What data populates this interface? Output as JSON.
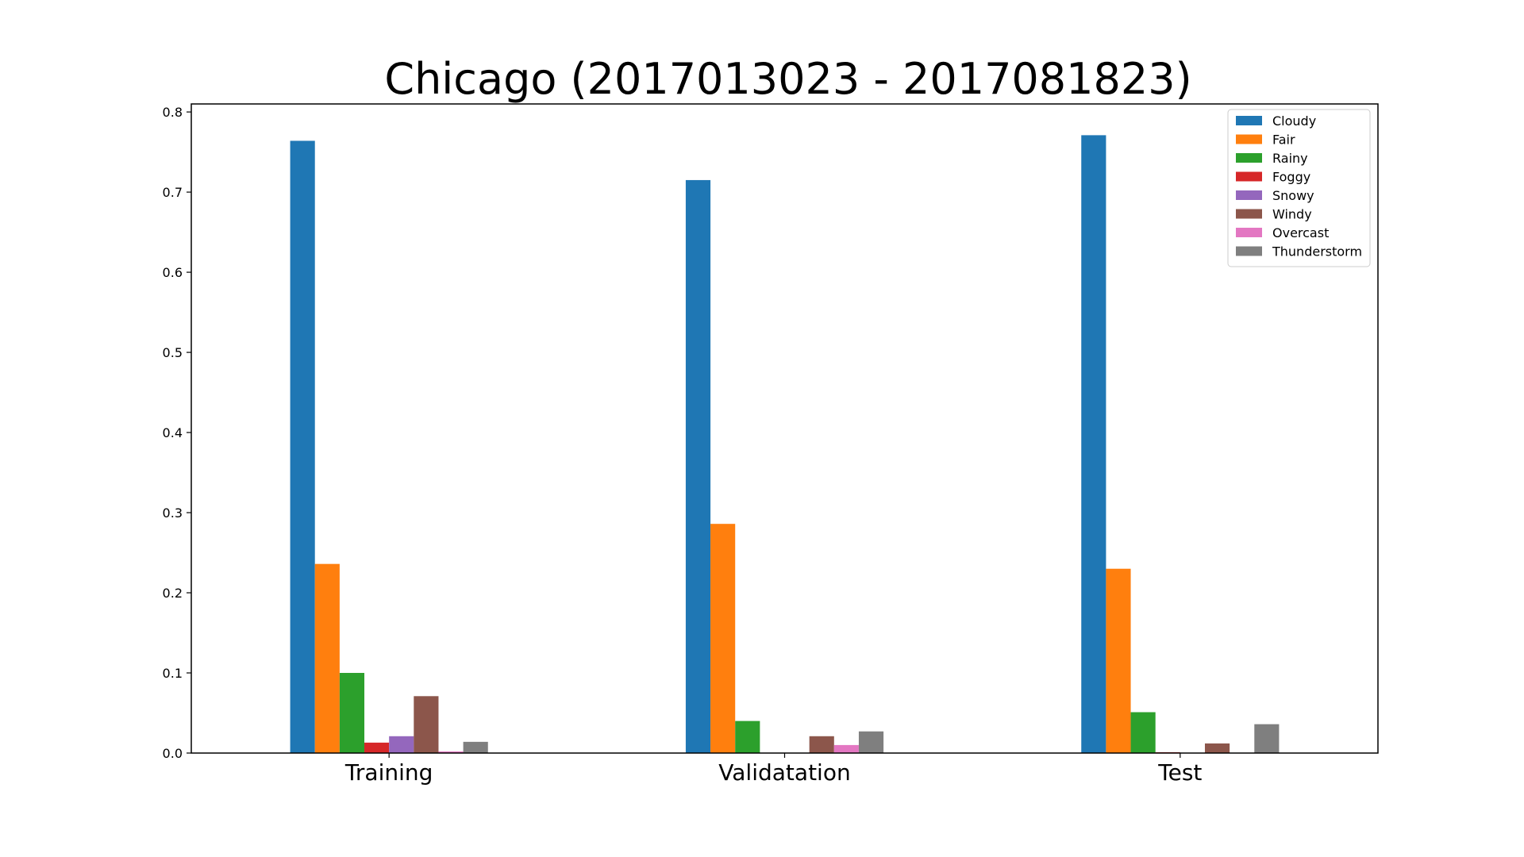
{
  "chart_data": {
    "type": "bar",
    "title": "Chicago (2017013023 - 2017081823)",
    "xlabel": "",
    "ylabel": "",
    "categories": [
      "Training",
      "Validatation",
      "Test"
    ],
    "ylim": [
      0,
      0.81
    ],
    "yticks": [
      0.0,
      0.1,
      0.2,
      0.3,
      0.4,
      0.5,
      0.6,
      0.7,
      0.8
    ],
    "ytick_labels": [
      "0.0",
      "0.1",
      "0.2",
      "0.3",
      "0.4",
      "0.5",
      "0.6",
      "0.7",
      "0.8"
    ],
    "grid": false,
    "legend_position": "top-right",
    "series": [
      {
        "name": "Cloudy",
        "color": "#1f77b4",
        "values": [
          0.764,
          0.715,
          0.771
        ]
      },
      {
        "name": "Fair",
        "color": "#ff7f0e",
        "values": [
          0.236,
          0.286,
          0.23
        ]
      },
      {
        "name": "Rainy",
        "color": "#2ca02c",
        "values": [
          0.1,
          0.04,
          0.051
        ]
      },
      {
        "name": "Foggy",
        "color": "#d62728",
        "values": [
          0.013,
          0.0,
          0.001
        ]
      },
      {
        "name": "Snowy",
        "color": "#9467bd",
        "values": [
          0.021,
          0.0,
          0.0
        ]
      },
      {
        "name": "Windy",
        "color": "#8c564b",
        "values": [
          0.071,
          0.021,
          0.012
        ]
      },
      {
        "name": "Overcast",
        "color": "#e377c2",
        "values": [
          0.002,
          0.01,
          0.0
        ]
      },
      {
        "name": "Thunderstorm",
        "color": "#7f7f7f",
        "values": [
          0.014,
          0.027,
          0.036
        ]
      }
    ]
  }
}
